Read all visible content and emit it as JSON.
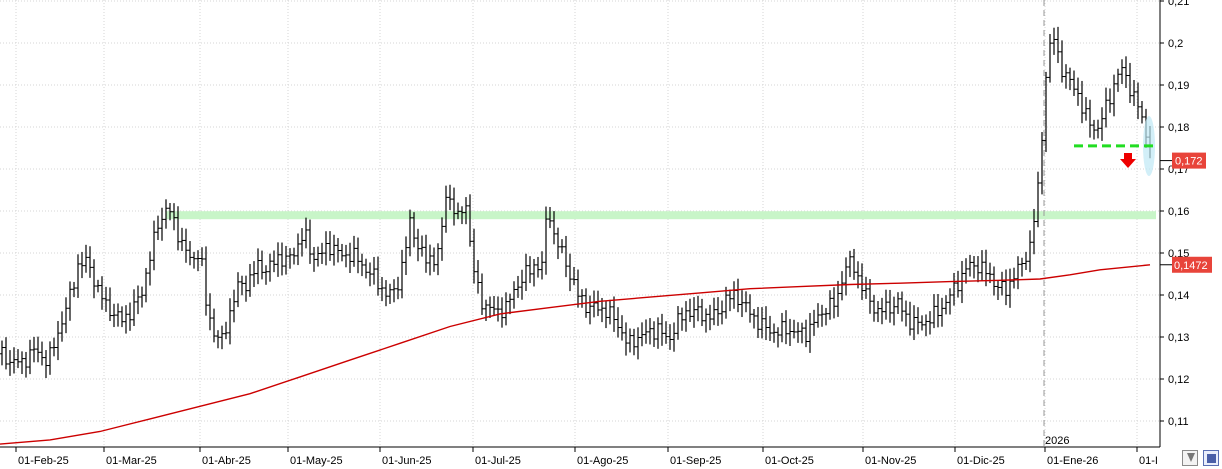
{
  "chart_data": {
    "type": "ohlc",
    "x_labels": [
      "01-Feb-25",
      "01-Mar-25",
      "01-Abr-25",
      "01-May-25",
      "01-Jun-25",
      "01-Jul-25",
      "01-Ago-25",
      "01-Sep-25",
      "01-Oct-25",
      "01-Nov-25",
      "01-Dic-25",
      "01-Ene-26",
      "01-I"
    ],
    "year_label": "2026",
    "y_ticks": [
      "0,11",
      "0,12",
      "0,13",
      "0,14",
      "0,15",
      "0,16",
      "0,17",
      "0,18",
      "0,19",
      "0,2",
      "0,21"
    ],
    "ylim": [
      0.104,
      0.211
    ],
    "grid": true,
    "price_label": "0,172",
    "ma_label": "0,1472",
    "colors": {
      "bars": "#000000",
      "moving_average": "#cc0000",
      "support_band": "#c8f5c8",
      "breakdown_line": "#22dd22",
      "arrow": "#ee0000",
      "price_label_bg": "#e8443a"
    },
    "support_level": 0.159,
    "breakdown_level": 0.1755,
    "price_path": [
      [
        0,
        0.126
      ],
      [
        12,
        0.124
      ],
      [
        22,
        0.124
      ],
      [
        35,
        0.127
      ],
      [
        48,
        0.124
      ],
      [
        58,
        0.131
      ],
      [
        68,
        0.138
      ],
      [
        78,
        0.147
      ],
      [
        88,
        0.148
      ],
      [
        98,
        0.141
      ],
      [
        108,
        0.137
      ],
      [
        120,
        0.134
      ],
      [
        132,
        0.136
      ],
      [
        142,
        0.141
      ],
      [
        150,
        0.149
      ],
      [
        158,
        0.157
      ],
      [
        168,
        0.161
      ],
      [
        176,
        0.156
      ],
      [
        184,
        0.151
      ],
      [
        192,
        0.148
      ],
      [
        200,
        0.151
      ],
      [
        206,
        0.138
      ],
      [
        214,
        0.131
      ],
      [
        222,
        0.129
      ],
      [
        230,
        0.136
      ],
      [
        238,
        0.142
      ],
      [
        248,
        0.143
      ],
      [
        258,
        0.147
      ],
      [
        268,
        0.146
      ],
      [
        278,
        0.149
      ],
      [
        288,
        0.148
      ],
      [
        296,
        0.151
      ],
      [
        304,
        0.155
      ],
      [
        312,
        0.149
      ],
      [
        322,
        0.15
      ],
      [
        332,
        0.152
      ],
      [
        342,
        0.149
      ],
      [
        352,
        0.15
      ],
      [
        362,
        0.147
      ],
      [
        372,
        0.145
      ],
      [
        380,
        0.142
      ],
      [
        388,
        0.14
      ],
      [
        396,
        0.141
      ],
      [
        404,
        0.149
      ],
      [
        410,
        0.157
      ],
      [
        418,
        0.152
      ],
      [
        426,
        0.148
      ],
      [
        434,
        0.149
      ],
      [
        440,
        0.151
      ],
      [
        446,
        0.164
      ],
      [
        452,
        0.162
      ],
      [
        458,
        0.158
      ],
      [
        466,
        0.162
      ],
      [
        472,
        0.148
      ],
      [
        480,
        0.139
      ],
      [
        488,
        0.137
      ],
      [
        496,
        0.136
      ],
      [
        506,
        0.137
      ],
      [
        516,
        0.142
      ],
      [
        526,
        0.145
      ],
      [
        534,
        0.147
      ],
      [
        542,
        0.147
      ],
      [
        548,
        0.162
      ],
      [
        554,
        0.154
      ],
      [
        562,
        0.15
      ],
      [
        570,
        0.145
      ],
      [
        578,
        0.14
      ],
      [
        588,
        0.137
      ],
      [
        598,
        0.137
      ],
      [
        608,
        0.136
      ],
      [
        618,
        0.133
      ],
      [
        628,
        0.128
      ],
      [
        638,
        0.13
      ],
      [
        648,
        0.131
      ],
      [
        658,
        0.132
      ],
      [
        668,
        0.129
      ],
      [
        676,
        0.133
      ],
      [
        686,
        0.136
      ],
      [
        696,
        0.136
      ],
      [
        706,
        0.135
      ],
      [
        716,
        0.135
      ],
      [
        726,
        0.139
      ],
      [
        736,
        0.14
      ],
      [
        746,
        0.137
      ],
      [
        756,
        0.134
      ],
      [
        766,
        0.132
      ],
      [
        776,
        0.131
      ],
      [
        786,
        0.132
      ],
      [
        796,
        0.131
      ],
      [
        806,
        0.131
      ],
      [
        816,
        0.134
      ],
      [
        826,
        0.137
      ],
      [
        836,
        0.138
      ],
      [
        844,
        0.146
      ],
      [
        852,
        0.148
      ],
      [
        860,
        0.143
      ],
      [
        868,
        0.139
      ],
      [
        878,
        0.136
      ],
      [
        888,
        0.137
      ],
      [
        898,
        0.138
      ],
      [
        908,
        0.134
      ],
      [
        918,
        0.133
      ],
      [
        928,
        0.134
      ],
      [
        938,
        0.136
      ],
      [
        948,
        0.139
      ],
      [
        958,
        0.143
      ],
      [
        968,
        0.147
      ],
      [
        978,
        0.147
      ],
      [
        988,
        0.145
      ],
      [
        998,
        0.142
      ],
      [
        1006,
        0.141
      ],
      [
        1014,
        0.145
      ],
      [
        1022,
        0.147
      ],
      [
        1030,
        0.152
      ],
      [
        1036,
        0.161
      ],
      [
        1040,
        0.169
      ],
      [
        1044,
        0.187
      ],
      [
        1048,
        0.198
      ],
      [
        1054,
        0.201
      ],
      [
        1060,
        0.195
      ],
      [
        1066,
        0.192
      ],
      [
        1072,
        0.19
      ],
      [
        1078,
        0.188
      ],
      [
        1084,
        0.183
      ],
      [
        1090,
        0.181
      ],
      [
        1096,
        0.179
      ],
      [
        1102,
        0.182
      ],
      [
        1108,
        0.186
      ],
      [
        1114,
        0.19
      ],
      [
        1120,
        0.194
      ],
      [
        1126,
        0.192
      ],
      [
        1132,
        0.188
      ],
      [
        1138,
        0.185
      ],
      [
        1144,
        0.18
      ],
      [
        1150,
        0.176
      ]
    ],
    "moving_average_path": [
      [
        0,
        0.1045
      ],
      [
        50,
        0.1055
      ],
      [
        100,
        0.1075
      ],
      [
        150,
        0.1105
      ],
      [
        200,
        0.1135
      ],
      [
        250,
        0.1165
      ],
      [
        300,
        0.1205
      ],
      [
        350,
        0.1245
      ],
      [
        400,
        0.1285
      ],
      [
        450,
        0.1325
      ],
      [
        500,
        0.1355
      ],
      [
        550,
        0.137
      ],
      [
        600,
        0.1385
      ],
      [
        650,
        0.1395
      ],
      [
        700,
        0.1405
      ],
      [
        750,
        0.1415
      ],
      [
        800,
        0.142
      ],
      [
        850,
        0.1425
      ],
      [
        900,
        0.1428
      ],
      [
        950,
        0.1432
      ],
      [
        1000,
        0.1435
      ],
      [
        1040,
        0.1438
      ],
      [
        1070,
        0.1448
      ],
      [
        1100,
        0.146
      ],
      [
        1150,
        0.1472
      ]
    ]
  }
}
